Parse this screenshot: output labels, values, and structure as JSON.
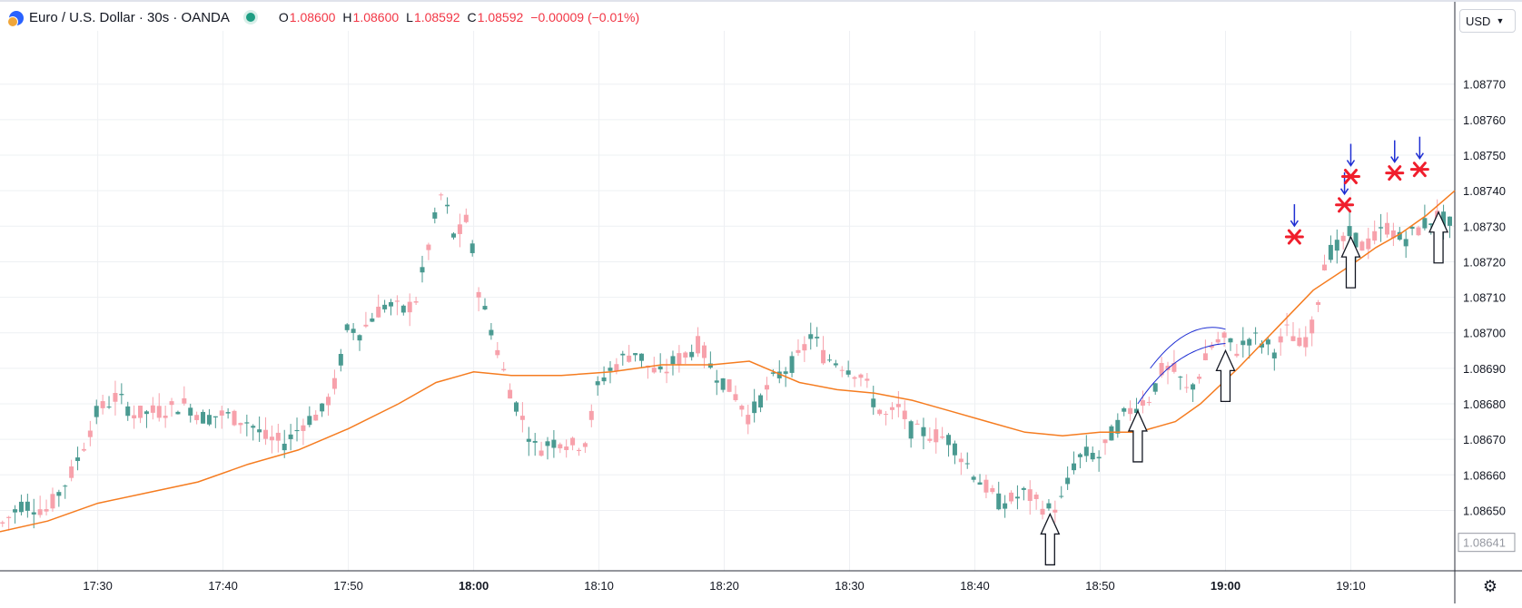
{
  "legend": {
    "symbol": "Euro / U.S. Dollar · 30s · OANDA",
    "open_label": "O",
    "open": "1.08600",
    "high_label": "H",
    "high": "1.08600",
    "low_label": "L",
    "low": "1.08592",
    "close_label": "C",
    "close": "1.08592",
    "change": "−0.00009 (−0.01%)"
  },
  "currency": "USD",
  "last_price_label": "1.08641",
  "chart_data": {
    "type": "candlestick",
    "instrument": "EURUSD",
    "interval": "30s",
    "ylim": [
      1.08633,
      1.08785
    ],
    "y_ticks": [
      "1.08650",
      "1.08660",
      "1.08670",
      "1.08680",
      "1.08690",
      "1.08700",
      "1.08710",
      "1.08720",
      "1.08730",
      "1.08740",
      "1.08750",
      "1.08760",
      "1.08770"
    ],
    "x_ticks": [
      "17:30",
      "17:40",
      "17:50",
      "18:00",
      "18:10",
      "18:20",
      "18:30",
      "18:40",
      "18:50",
      "19:00",
      "19:10"
    ],
    "bold_x_ticks": [
      "18:00",
      "19:00"
    ],
    "x_range_minutes": [
      1042.2,
      1158.3
    ],
    "colors": {
      "up": "#f7a1ab",
      "down": "#4a9a91",
      "ma": "#f57c20",
      "annot_blue": "#1f2fd3",
      "annot_red": "#f01e2c",
      "grid": "#eef0f3"
    },
    "price_path_minutes": [
      [
        1042.3,
        1.08646
      ],
      [
        1044,
        1.08652
      ],
      [
        1046,
        1.0865
      ],
      [
        1048,
        1.08661
      ],
      [
        1050,
        1.08678
      ],
      [
        1051.5,
        1.08682
      ],
      [
        1053,
        1.08677
      ],
      [
        1055,
        1.08678
      ],
      [
        1057,
        1.0868
      ],
      [
        1058.5,
        1.08676
      ],
      [
        1060,
        1.08677
      ],
      [
        1062,
        1.08675
      ],
      [
        1063.5,
        1.0867
      ],
      [
        1065,
        1.08669
      ],
      [
        1066.5,
        1.08675
      ],
      [
        1068,
        1.08678
      ],
      [
        1069,
        1.08686
      ],
      [
        1070,
        1.08702
      ],
      [
        1071,
        1.087
      ],
      [
        1072,
        1.08705
      ],
      [
        1073,
        1.08708
      ],
      [
        1074.5,
        1.08706
      ],
      [
        1075.5,
        1.0871
      ],
      [
        1076.5,
        1.08726
      ],
      [
        1077.5,
        1.0874
      ],
      [
        1078.5,
        1.08726
      ],
      [
        1079.5,
        1.08732
      ],
      [
        1080.5,
        1.0871
      ],
      [
        1081.5,
        1.087
      ],
      [
        1082.3,
        1.0869
      ],
      [
        1083,
        1.08683
      ],
      [
        1084,
        1.08675
      ],
      [
        1085,
        1.08667
      ],
      [
        1086,
        1.08669
      ],
      [
        1087,
        1.0867
      ],
      [
        1088,
        1.08668
      ],
      [
        1089,
        1.0867
      ],
      [
        1090,
        1.08686
      ],
      [
        1091,
        1.0869
      ],
      [
        1092,
        1.08693
      ],
      [
        1093,
        1.08695
      ],
      [
        1094,
        1.0869
      ],
      [
        1095,
        1.08688
      ],
      [
        1096,
        1.08692
      ],
      [
        1097,
        1.08694
      ],
      [
        1098,
        1.08697
      ],
      [
        1099,
        1.0869
      ],
      [
        1100,
        1.08686
      ],
      [
        1101,
        1.08682
      ],
      [
        1102,
        1.08676
      ],
      [
        1103,
        1.08682
      ],
      [
        1104,
        1.08687
      ],
      [
        1105,
        1.0869
      ],
      [
        1106,
        1.08693
      ],
      [
        1107,
        1.087
      ],
      [
        1108,
        1.08693
      ],
      [
        1109,
        1.08692
      ],
      [
        1110,
        1.0869
      ],
      [
        1111,
        1.08688
      ],
      [
        1112,
        1.0868
      ],
      [
        1113,
        1.08676
      ],
      [
        1114,
        1.08679
      ],
      [
        1115,
        1.08672
      ],
      [
        1116,
        1.08672
      ],
      [
        1117,
        1.08671
      ],
      [
        1118,
        1.0867
      ],
      [
        1119,
        1.08665
      ],
      [
        1120,
        1.0866
      ],
      [
        1121,
        1.08656
      ],
      [
        1122,
        1.08652
      ],
      [
        1123,
        1.08653
      ],
      [
        1124,
        1.08655
      ],
      [
        1125,
        1.08652
      ],
      [
        1126,
        1.0865
      ],
      [
        1127,
        1.08653
      ],
      [
        1128,
        1.08664
      ],
      [
        1129,
        1.08666
      ],
      [
        1130,
        1.08665
      ],
      [
        1131,
        1.08672
      ],
      [
        1132,
        1.08677
      ],
      [
        1133,
        1.0868
      ],
      [
        1134,
        1.08682
      ],
      [
        1135,
        1.0869
      ],
      [
        1136,
        1.08689
      ],
      [
        1137,
        1.08683
      ],
      [
        1138,
        1.08689
      ],
      [
        1139,
        1.08697
      ],
      [
        1140,
        1.08698
      ],
      [
        1141,
        1.08695
      ],
      [
        1142,
        1.08699
      ],
      [
        1143,
        1.08697
      ],
      [
        1144,
        1.08695
      ],
      [
        1145,
        1.08701
      ],
      [
        1146,
        1.08696
      ],
      [
        1147,
        1.08702
      ],
      [
        1148,
        1.08722
      ],
      [
        1149,
        1.08724
      ],
      [
        1150,
        1.08728
      ],
      [
        1151,
        1.08724
      ],
      [
        1152,
        1.08727
      ],
      [
        1153,
        1.0873
      ],
      [
        1154,
        1.08726
      ],
      [
        1155,
        1.08728
      ],
      [
        1156,
        1.08731
      ],
      [
        1157,
        1.08733
      ],
      [
        1158,
        1.0873
      ]
    ],
    "ma_path_minutes": [
      [
        1042.2,
        1.08644
      ],
      [
        1046,
        1.08647
      ],
      [
        1050,
        1.08652
      ],
      [
        1054,
        1.08655
      ],
      [
        1058,
        1.08658
      ],
      [
        1062,
        1.08663
      ],
      [
        1066,
        1.08667
      ],
      [
        1070,
        1.08673
      ],
      [
        1074,
        1.0868
      ],
      [
        1077,
        1.08686
      ],
      [
        1080,
        1.08689
      ],
      [
        1083,
        1.08688
      ],
      [
        1087,
        1.08688
      ],
      [
        1091,
        1.08689
      ],
      [
        1095,
        1.08691
      ],
      [
        1099,
        1.08691
      ],
      [
        1102,
        1.08692
      ],
      [
        1104,
        1.08689
      ],
      [
        1106,
        1.08686
      ],
      [
        1109,
        1.08684
      ],
      [
        1112,
        1.08683
      ],
      [
        1115,
        1.08681
      ],
      [
        1118,
        1.08678
      ],
      [
        1121,
        1.08675
      ],
      [
        1124,
        1.08672
      ],
      [
        1127,
        1.08671
      ],
      [
        1130,
        1.08672
      ],
      [
        1133,
        1.08672
      ],
      [
        1136,
        1.08675
      ],
      [
        1138,
        1.0868
      ],
      [
        1141,
        1.0869
      ],
      [
        1144,
        1.08701
      ],
      [
        1147,
        1.08712
      ],
      [
        1150,
        1.08719
      ],
      [
        1152,
        1.08724
      ],
      [
        1154,
        1.08728
      ],
      [
        1156,
        1.08733
      ],
      [
        1158.3,
        1.0874
      ]
    ],
    "annotations": {
      "white_up_arrows_at": [
        [
          1126,
          1.0865
        ],
        [
          1133,
          1.08679
        ],
        [
          1140,
          1.08696
        ],
        [
          1150,
          1.08728
        ],
        [
          1157,
          1.08735
        ]
      ],
      "blue_curves": [
        [
          1134,
          1.0869
        ],
        [
          1137,
          1.08699
        ],
        [
          1140,
          1.08701
        ]
      ],
      "red_star_markers": [
        [
          1145.5,
          1.08727
        ],
        [
          1149.5,
          1.08736
        ],
        [
          1150,
          1.08744
        ],
        [
          1153.5,
          1.08745
        ],
        [
          1155.5,
          1.08746
        ]
      ]
    }
  }
}
